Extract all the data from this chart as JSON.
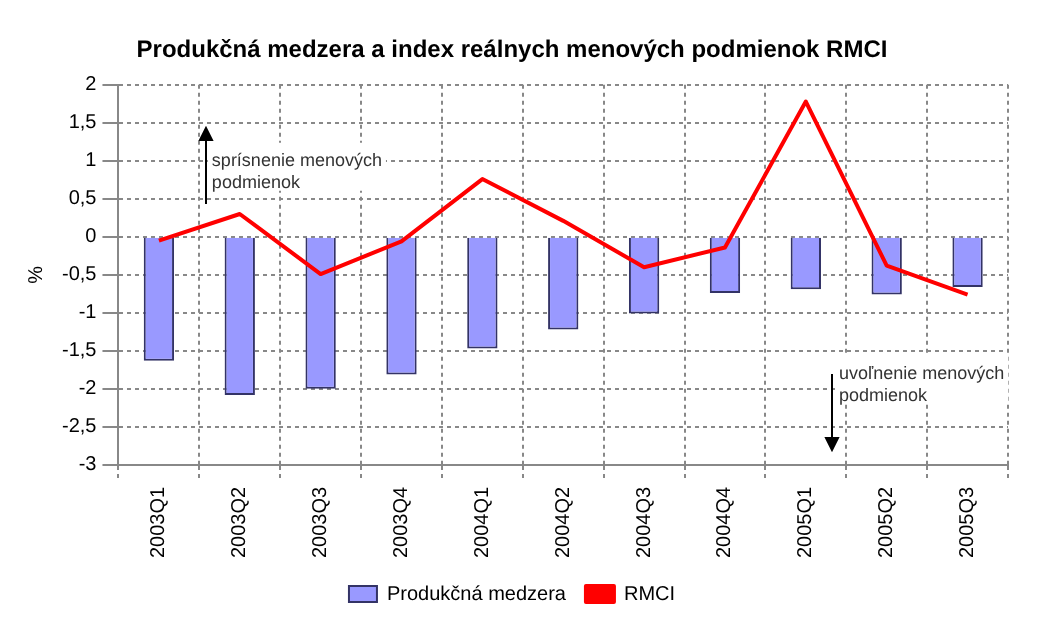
{
  "chart_data": {
    "type": "bar",
    "title": "Produkčná medzera a index reálnych menových podmienok RMCI",
    "ylabel": "%",
    "categories": [
      "2003Q1",
      "2003Q2",
      "2003Q3",
      "2003Q4",
      "2004Q1",
      "2004Q2",
      "2004Q3",
      "2004Q4",
      "2005Q1",
      "2005Q2",
      "2005Q3"
    ],
    "series": [
      {
        "name": "Produkčná medzera",
        "color": "#9999ff",
        "values": [
          -1.63,
          -2.08,
          -2.0,
          -1.81,
          -1.47,
          -1.22,
          -1.01,
          -0.74,
          -0.69,
          -0.76,
          -0.66
        ]
      },
      {
        "name": "RMCI",
        "type": "line",
        "color": "#ff0000",
        "values": [
          -0.05,
          0.3,
          -0.49,
          -0.06,
          0.76,
          0.21,
          -0.4,
          -0.14,
          1.78,
          -0.38,
          -0.76
        ]
      }
    ],
    "ylim": [
      -3,
      2
    ],
    "yticks": [
      -3,
      {
        "value": -2.5,
        "label": "-2,5"
      },
      -2,
      {
        "value": -1.5,
        "label": "-1,5"
      },
      -1,
      {
        "value": -0.5,
        "label": "-0,5"
      },
      0,
      {
        "value": 0.5,
        "label": "0,5"
      },
      1,
      {
        "value": 1.5,
        "label": "1,5"
      },
      2
    ],
    "annotations": [
      "uvoľnenie menových podmienok",
      "sprísnenie menových podmienok"
    ],
    "grid": true,
    "legend": "bottom",
    "marker": "none",
    "line_style": "solid"
  }
}
